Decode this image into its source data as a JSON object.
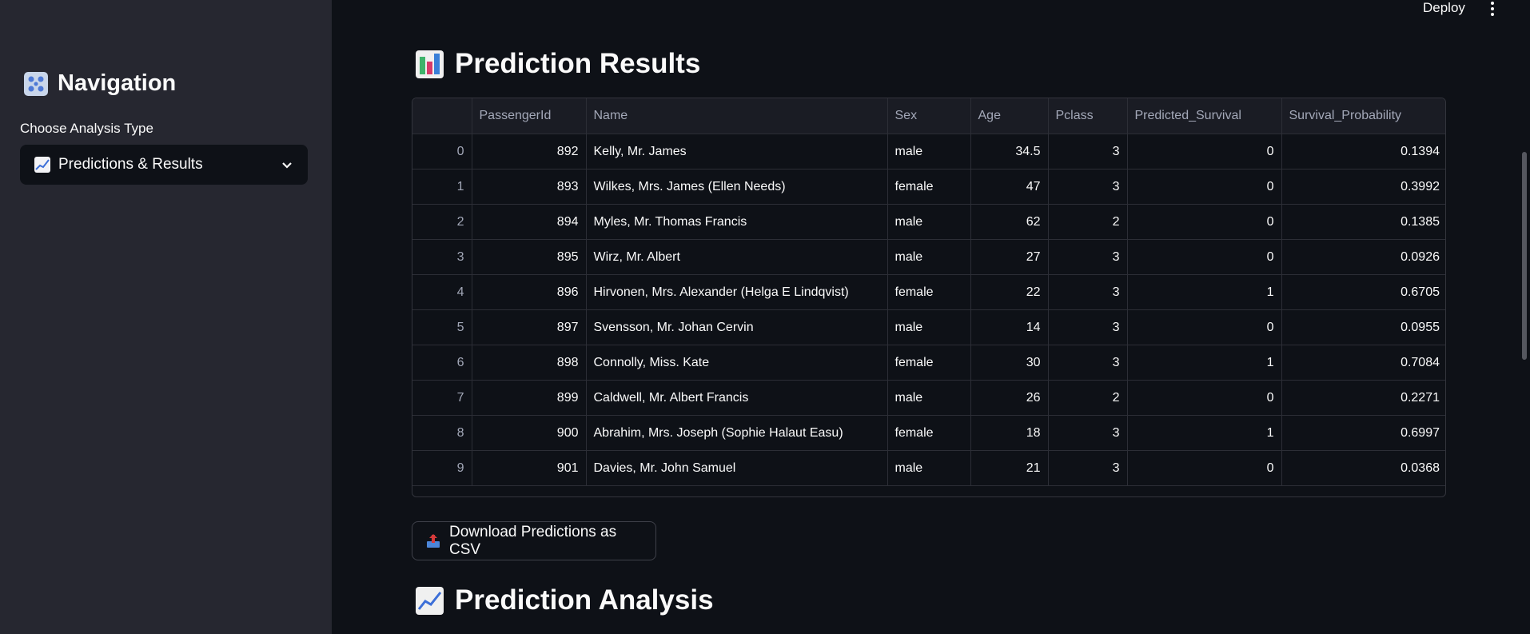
{
  "header": {
    "deploy_label": "Deploy"
  },
  "sidebar": {
    "title": "Navigation",
    "choose_label": "Choose Analysis Type",
    "selected_option": "Predictions & Results"
  },
  "results": {
    "title": "Prediction Results",
    "columns": [
      "",
      "PassengerId",
      "Name",
      "Sex",
      "Age",
      "Pclass",
      "Predicted_Survival",
      "Survival_Probability"
    ],
    "rows": [
      [
        "0",
        "892",
        "Kelly, Mr. James",
        "male",
        "34.5",
        "3",
        "0",
        "0.1394"
      ],
      [
        "1",
        "893",
        "Wilkes, Mrs. James (Ellen Needs)",
        "female",
        "47",
        "3",
        "0",
        "0.3992"
      ],
      [
        "2",
        "894",
        "Myles, Mr. Thomas Francis",
        "male",
        "62",
        "2",
        "0",
        "0.1385"
      ],
      [
        "3",
        "895",
        "Wirz, Mr. Albert",
        "male",
        "27",
        "3",
        "0",
        "0.0926"
      ],
      [
        "4",
        "896",
        "Hirvonen, Mrs. Alexander (Helga E Lindqvist)",
        "female",
        "22",
        "3",
        "1",
        "0.6705"
      ],
      [
        "5",
        "897",
        "Svensson, Mr. Johan Cervin",
        "male",
        "14",
        "3",
        "0",
        "0.0955"
      ],
      [
        "6",
        "898",
        "Connolly, Miss. Kate",
        "female",
        "30",
        "3",
        "1",
        "0.7084"
      ],
      [
        "7",
        "899",
        "Caldwell, Mr. Albert Francis",
        "male",
        "26",
        "2",
        "0",
        "0.2271"
      ],
      [
        "8",
        "900",
        "Abrahim, Mrs. Joseph (Sophie Halaut Easu)",
        "female",
        "18",
        "3",
        "1",
        "0.6997"
      ],
      [
        "9",
        "901",
        "Davies, Mr. John Samuel",
        "male",
        "21",
        "3",
        "0",
        "0.0368"
      ]
    ],
    "download_label": "Download Predictions as CSV"
  },
  "analysis": {
    "title": "Prediction Analysis"
  }
}
